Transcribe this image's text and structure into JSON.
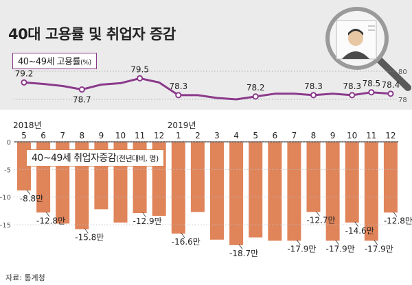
{
  "title": "40대 고용률 및 취업자 증감",
  "source": "자료: 통계청",
  "colors": {
    "band": "#ebebec",
    "line": "#8b3a8b",
    "bar": "#e0845a",
    "bar_edge": "#c9683d",
    "text": "#222222",
    "dark_axis": "#555555",
    "dot_fill": "#ffffff"
  },
  "decoration": {
    "icon": "magnifier-icon",
    "detail": "portrait-icon"
  },
  "chart_data": [
    {
      "type": "line",
      "label": "40~49세 고용률",
      "unit": "(%)",
      "x": [
        "2018-05",
        "2018-06",
        "2018-07",
        "2018-08",
        "2018-09",
        "2018-10",
        "2018-11",
        "2018-12",
        "2019-01",
        "2019-02",
        "2019-03",
        "2019-04",
        "2019-05",
        "2019-06",
        "2019-07",
        "2019-08",
        "2019-09",
        "2019-10",
        "2019-11",
        "2019-12"
      ],
      "values": [
        79.2,
        79.1,
        78.95,
        78.7,
        79.05,
        79.15,
        79.5,
        79.2,
        78.3,
        78.3,
        78.1,
        78.0,
        78.2,
        78.4,
        78.4,
        78.3,
        78.4,
        78.3,
        78.5,
        78.4
      ],
      "data_labels": [
        {
          "index": 0,
          "text": "79.2"
        },
        {
          "index": 3,
          "text": "78.7"
        },
        {
          "index": 6,
          "text": "79.5"
        },
        {
          "index": 8,
          "text": "78.3"
        },
        {
          "index": 12,
          "text": "78.2"
        },
        {
          "index": 15,
          "text": "78.3"
        },
        {
          "index": 17,
          "text": "78.3"
        },
        {
          "index": 18,
          "text": "78.5"
        },
        {
          "index": 19,
          "text": "78.4"
        }
      ],
      "markers_at": [
        0,
        3,
        6,
        8,
        12,
        15,
        17,
        18,
        19
      ],
      "yticks": [
        80,
        78
      ],
      "ylim": [
        77.2,
        81.3
      ]
    },
    {
      "type": "bar",
      "label": "40~49세 취업자증감",
      "unit": "(전년대비, 명)",
      "categories": [
        "5",
        "6",
        "7",
        "8",
        "9",
        "10",
        "11",
        "12",
        "1",
        "2",
        "3",
        "4",
        "5",
        "6",
        "7",
        "8",
        "9",
        "10",
        "11",
        "12"
      ],
      "year_labels": [
        {
          "index": 0,
          "text": "2018년"
        },
        {
          "index": 8,
          "text": "2019년"
        }
      ],
      "values": [
        -8.8,
        -12.8,
        -14.8,
        -15.8,
        -12.2,
        -14.6,
        -12.9,
        -13.4,
        -16.6,
        -12.7,
        -17.7,
        -18.7,
        -17.3,
        -17.9,
        -17.9,
        -12.7,
        -17.9,
        -14.6,
        -17.9,
        -12.8
      ],
      "data_labels": [
        {
          "index": 0,
          "text": "-8.8만"
        },
        {
          "index": 1,
          "text": "-12.8만"
        },
        {
          "index": 3,
          "text": "-15.8만"
        },
        {
          "index": 6,
          "text": "-12.9만"
        },
        {
          "index": 8,
          "text": "-16.6만"
        },
        {
          "index": 11,
          "text": "-18.7만"
        },
        {
          "index": 14,
          "text": "-17.9만"
        },
        {
          "index": 15,
          "text": "-12.7만"
        },
        {
          "index": 16,
          "text": "-17.9만"
        },
        {
          "index": 17,
          "text": "-14.6만"
        },
        {
          "index": 18,
          "text": "-17.9만"
        },
        {
          "index": 19,
          "text": "-12.8만"
        }
      ],
      "yticks": [
        0,
        -5,
        -10,
        -15
      ],
      "ylim": [
        -19.5,
        0
      ]
    }
  ]
}
